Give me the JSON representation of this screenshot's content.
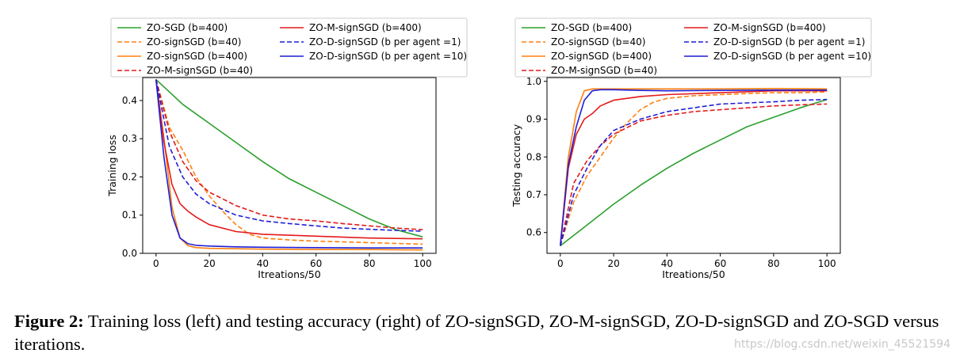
{
  "caption": {
    "figure_label": "Figure 2:",
    "text": "Training loss (left) and testing accuracy (right) of ZO-signSGD, ZO-M-signSGD, ZO-D-signSGD and ZO-SGD versus iterations."
  },
  "watermark": "https://blog.csdn.net/weixin_45521594",
  "legend": {
    "left_column": [
      "ZO-SGD (b=400)",
      "ZO-signSGD (b=40)",
      "ZO-signSGD (b=400)",
      "ZO-M-signSGD (b=40)"
    ],
    "right_column": [
      "ZO-M-signSGD (b=400)",
      "ZO-D-signSGD (b per agent =1)",
      "ZO-D-signSGD (b per agent =10)"
    ]
  },
  "colors": {
    "green": "#2ca02c",
    "orange": "#ff7f0e",
    "red": "#e31a1c",
    "blue": "#1f1fd6"
  },
  "chart_data": [
    {
      "type": "line",
      "title": "",
      "xlabel": "Itreations/50",
      "ylabel": "Training loss",
      "xlim": [
        -5,
        105
      ],
      "ylim": [
        0.0,
        0.46
      ],
      "xticks": [
        0,
        20,
        40,
        60,
        80,
        100
      ],
      "yticks": [
        0.0,
        0.1,
        0.2,
        0.3,
        0.4
      ],
      "ytick_labels": [
        "0.0",
        "0.1",
        "0.2",
        "0.3",
        "0.4"
      ],
      "series": [
        {
          "name": "ZO-SGD (b=400)",
          "color": "green",
          "dash": false,
          "x": [
            0,
            10,
            20,
            30,
            40,
            50,
            60,
            70,
            80,
            90,
            100
          ],
          "y": [
            0.455,
            0.39,
            0.34,
            0.29,
            0.24,
            0.195,
            0.16,
            0.125,
            0.09,
            0.062,
            0.043
          ]
        },
        {
          "name": "ZO-signSGD (b=40)",
          "color": "orange",
          "dash": true,
          "x": [
            0,
            5,
            10,
            15,
            20,
            25,
            30,
            35,
            40,
            50,
            60,
            70,
            80,
            90,
            100
          ],
          "y": [
            0.455,
            0.33,
            0.27,
            0.2,
            0.15,
            0.11,
            0.075,
            0.05,
            0.04,
            0.035,
            0.032,
            0.03,
            0.028,
            0.026,
            0.024
          ]
        },
        {
          "name": "ZO-signSGD (b=400)",
          "color": "orange",
          "dash": false,
          "x": [
            0,
            3,
            6,
            9,
            12,
            15,
            20,
            30,
            40,
            60,
            80,
            100
          ],
          "y": [
            0.455,
            0.3,
            0.12,
            0.04,
            0.02,
            0.015,
            0.013,
            0.012,
            0.011,
            0.01,
            0.01,
            0.009
          ]
        },
        {
          "name": "ZO-M-signSGD (b=40)",
          "color": "red",
          "dash": true,
          "x": [
            0,
            5,
            10,
            15,
            20,
            30,
            40,
            50,
            60,
            70,
            80,
            90,
            100
          ],
          "y": [
            0.455,
            0.32,
            0.24,
            0.19,
            0.16,
            0.125,
            0.1,
            0.09,
            0.085,
            0.078,
            0.072,
            0.066,
            0.062
          ]
        },
        {
          "name": "ZO-M-signSGD (b=400)",
          "color": "red",
          "dash": false,
          "x": [
            0,
            3,
            6,
            9,
            12,
            15,
            20,
            30,
            40,
            60,
            80,
            100
          ],
          "y": [
            0.455,
            0.29,
            0.18,
            0.13,
            0.11,
            0.095,
            0.075,
            0.057,
            0.05,
            0.045,
            0.04,
            0.038
          ]
        },
        {
          "name": "ZO-D-signSGD (b per agent =1)",
          "color": "blue",
          "dash": true,
          "x": [
            0,
            5,
            10,
            15,
            20,
            30,
            40,
            50,
            60,
            70,
            80,
            90,
            100
          ],
          "y": [
            0.455,
            0.28,
            0.2,
            0.155,
            0.13,
            0.1,
            0.085,
            0.078,
            0.072,
            0.066,
            0.063,
            0.06,
            0.058
          ]
        },
        {
          "name": "ZO-D-signSGD (b per agent =10)",
          "color": "blue",
          "dash": false,
          "x": [
            0,
            3,
            6,
            9,
            12,
            15,
            20,
            30,
            40,
            60,
            80,
            100
          ],
          "y": [
            0.455,
            0.25,
            0.1,
            0.04,
            0.025,
            0.021,
            0.019,
            0.017,
            0.016,
            0.015,
            0.014,
            0.014
          ]
        }
      ]
    },
    {
      "type": "line",
      "title": "",
      "xlabel": "Itreations/50",
      "ylabel": "Testing accuracy",
      "xlim": [
        -5,
        105
      ],
      "ylim": [
        0.545,
        1.01
      ],
      "xticks": [
        0,
        20,
        40,
        60,
        80,
        100
      ],
      "yticks": [
        0.6,
        0.7,
        0.8,
        0.9,
        1.0
      ],
      "ytick_labels": [
        "0.6",
        "0.7",
        "0.8",
        "0.9",
        "1.0"
      ],
      "series": [
        {
          "name": "ZO-SGD (b=400)",
          "color": "green",
          "dash": false,
          "x": [
            0,
            10,
            20,
            30,
            40,
            50,
            60,
            70,
            80,
            90,
            100
          ],
          "y": [
            0.565,
            0.62,
            0.675,
            0.725,
            0.77,
            0.81,
            0.845,
            0.88,
            0.905,
            0.93,
            0.952
          ]
        },
        {
          "name": "ZO-signSGD (b=40)",
          "color": "orange",
          "dash": true,
          "x": [
            0,
            5,
            10,
            15,
            20,
            25,
            30,
            35,
            40,
            50,
            60,
            70,
            80,
            90,
            100
          ],
          "y": [
            0.565,
            0.68,
            0.75,
            0.8,
            0.85,
            0.89,
            0.925,
            0.945,
            0.955,
            0.962,
            0.965,
            0.968,
            0.97,
            0.97,
            0.972
          ]
        },
        {
          "name": "ZO-signSGD (b=400)",
          "color": "orange",
          "dash": false,
          "x": [
            0,
            3,
            6,
            9,
            12,
            15,
            20,
            30,
            40,
            60,
            80,
            100
          ],
          "y": [
            0.565,
            0.8,
            0.92,
            0.975,
            0.98,
            0.98,
            0.98,
            0.98,
            0.98,
            0.98,
            0.981,
            0.98
          ]
        },
        {
          "name": "ZO-M-signSGD (b=40)",
          "color": "red",
          "dash": true,
          "x": [
            0,
            5,
            10,
            15,
            20,
            30,
            40,
            50,
            60,
            70,
            80,
            90,
            100
          ],
          "y": [
            0.565,
            0.73,
            0.79,
            0.83,
            0.86,
            0.895,
            0.91,
            0.92,
            0.925,
            0.93,
            0.935,
            0.938,
            0.94
          ]
        },
        {
          "name": "ZO-M-signSGD (b=400)",
          "color": "red",
          "dash": false,
          "x": [
            0,
            3,
            6,
            9,
            12,
            15,
            20,
            30,
            40,
            60,
            80,
            100
          ],
          "y": [
            0.565,
            0.77,
            0.86,
            0.9,
            0.915,
            0.935,
            0.95,
            0.96,
            0.965,
            0.97,
            0.975,
            0.975
          ]
        },
        {
          "name": "ZO-D-signSGD (b per agent =1)",
          "color": "blue",
          "dash": true,
          "x": [
            0,
            5,
            10,
            15,
            20,
            30,
            40,
            50,
            60,
            70,
            80,
            90,
            100
          ],
          "y": [
            0.565,
            0.7,
            0.77,
            0.83,
            0.87,
            0.9,
            0.92,
            0.93,
            0.94,
            0.943,
            0.946,
            0.95,
            0.952
          ]
        },
        {
          "name": "ZO-D-signSGD (b per agent =10)",
          "color": "blue",
          "dash": false,
          "x": [
            0,
            3,
            6,
            9,
            12,
            15,
            20,
            30,
            40,
            60,
            80,
            100
          ],
          "y": [
            0.565,
            0.78,
            0.88,
            0.95,
            0.975,
            0.978,
            0.978,
            0.976,
            0.975,
            0.976,
            0.977,
            0.977
          ]
        }
      ]
    }
  ]
}
